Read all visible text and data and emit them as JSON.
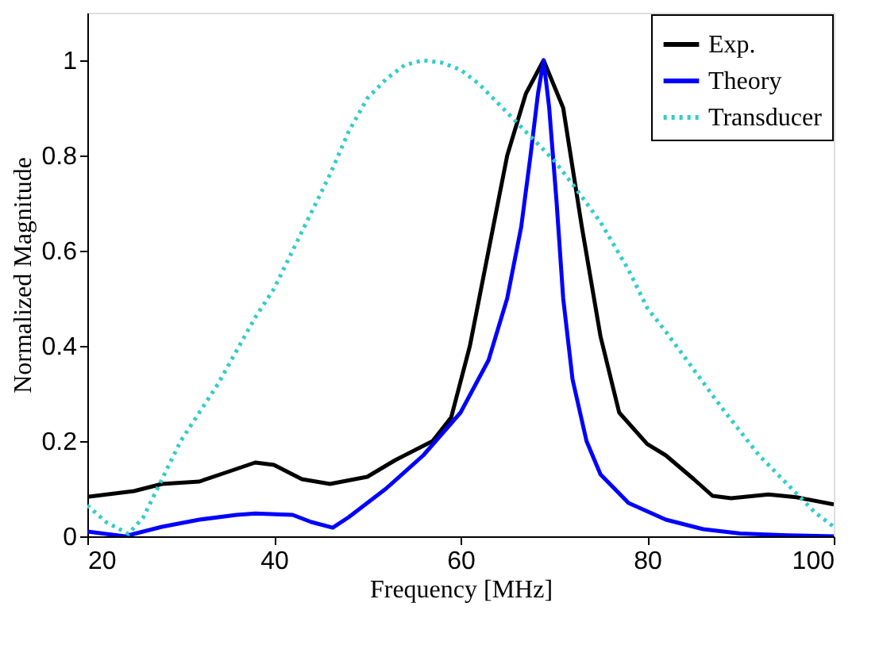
{
  "chart_data": {
    "type": "line",
    "xlabel": "Frequency [MHz]",
    "ylabel": "Normalized Magnitude",
    "xlim": [
      20,
      100
    ],
    "ylim": [
      0,
      1.1
    ],
    "xticks": [
      20,
      40,
      60,
      80,
      100
    ],
    "yticks": [
      0,
      0.2,
      0.4,
      0.6,
      0.8,
      1
    ],
    "grid": false,
    "legend": "top right",
    "marker": "none",
    "series": [
      {
        "name": "Exp.",
        "color": "#000000",
        "line_style": "solid",
        "x": [
          20,
          25,
          28,
          32,
          35,
          38,
          40,
          43,
          46,
          50,
          53,
          57,
          59,
          61,
          63,
          65,
          67,
          68.9,
          71,
          73,
          75,
          77,
          80,
          82,
          85,
          87,
          89,
          93,
          96,
          100
        ],
        "values": [
          0.083,
          0.095,
          0.11,
          0.115,
          0.135,
          0.155,
          0.15,
          0.12,
          0.11,
          0.125,
          0.16,
          0.2,
          0.25,
          0.4,
          0.6,
          0.8,
          0.93,
          1.0,
          0.9,
          0.65,
          0.42,
          0.26,
          0.194,
          0.17,
          0.12,
          0.085,
          0.08,
          0.088,
          0.082,
          0.067
        ]
      },
      {
        "name": "Theory",
        "color": "#0000ff",
        "line_style": "solid",
        "x": [
          20,
          24,
          28,
          32,
          36,
          38,
          42,
          44,
          46.3,
          48,
          52,
          56,
          60,
          63,
          65,
          66.5,
          67.5,
          68.3,
          68.9,
          69.5,
          70.3,
          71,
          72,
          73.5,
          75,
          78,
          82,
          86,
          90,
          95,
          100
        ],
        "values": [
          0.01,
          0.0,
          0.02,
          0.035,
          0.045,
          0.048,
          0.045,
          0.03,
          0.018,
          0.04,
          0.1,
          0.17,
          0.26,
          0.37,
          0.5,
          0.65,
          0.8,
          0.93,
          1.0,
          0.9,
          0.7,
          0.5,
          0.33,
          0.2,
          0.13,
          0.07,
          0.035,
          0.015,
          0.006,
          0.002,
          0.0
        ]
      },
      {
        "name": "Transducer",
        "color": "#33cccc",
        "line_style": "dotted",
        "x": [
          20,
          22,
          24.4,
          26,
          28,
          30,
          32,
          34,
          36,
          38,
          40,
          42,
          44,
          46,
          48,
          50,
          52,
          54,
          56,
          58,
          60,
          62,
          64,
          66,
          68,
          70,
          72,
          75,
          78,
          80,
          82,
          85,
          88,
          90,
          92,
          95,
          98,
          100
        ],
        "values": [
          0.065,
          0.03,
          0.005,
          0.04,
          0.12,
          0.2,
          0.26,
          0.32,
          0.39,
          0.46,
          0.52,
          0.6,
          0.68,
          0.76,
          0.85,
          0.92,
          0.96,
          0.99,
          1.0,
          0.995,
          0.98,
          0.95,
          0.91,
          0.87,
          0.83,
          0.79,
          0.74,
          0.66,
          0.56,
          0.48,
          0.43,
          0.35,
          0.27,
          0.22,
          0.17,
          0.11,
          0.05,
          0.02
        ]
      }
    ]
  }
}
